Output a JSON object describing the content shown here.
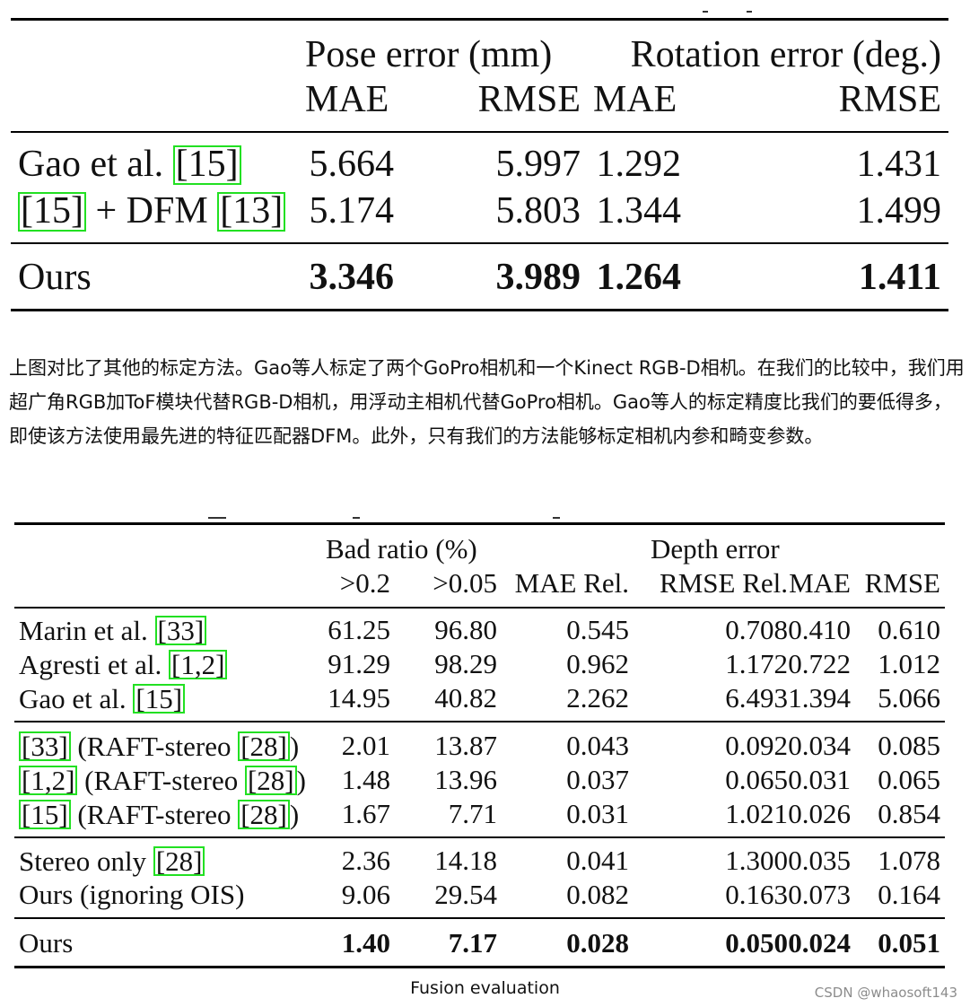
{
  "table1": {
    "header": {
      "group1": "Pose error (mm)",
      "group2": "Rotation error (deg.)",
      "col1": "MAE",
      "col2": "RMSE",
      "col3": "MAE",
      "col4": "RMSE"
    },
    "rows": [
      {
        "method_parts": [
          "Gao et al. ",
          "[15]"
        ],
        "values": [
          "5.664",
          "5.997",
          "1.292",
          "1.431"
        ],
        "bold": false
      },
      {
        "method_parts": [
          "[15]",
          " + DFM ",
          "[13]"
        ],
        "values": [
          "5.174",
          "5.803",
          "1.344",
          "1.499"
        ],
        "bold": false
      },
      {
        "method_parts": [
          "Ours"
        ],
        "values": [
          "3.346",
          "3.989",
          "1.264",
          "1.411"
        ],
        "bold": true
      }
    ]
  },
  "paragraph": "上图对比了其他的标定方法。Gao等人标定了两个GoPro相机和一个Kinect RGB-D相机。在我们的比较中，我们用超广角RGB加ToF模块代替RGB-D相机，用浮动主相机代替GoPro相机。Gao等人的标定精度比我们的要低得多，即使该方法使用最先进的特征匹配器DFM。此外，只有我们的方法能够标定相机内参和畸变参数。",
  "table2": {
    "header": {
      "group1": "Bad ratio (%)",
      "group2": "Depth error",
      "col1": ">0.2",
      "col2": ">0.05",
      "col3": "MAE Rel.",
      "col4": "RMSE Rel.",
      "col5": "MAE",
      "col6": "RMSE"
    },
    "rows": [
      {
        "method_parts": [
          "Marin et al. ",
          "[33]"
        ],
        "values": [
          "61.25",
          "96.80",
          "0.545",
          "0.708",
          "0.410",
          "0.610"
        ],
        "bold": false
      },
      {
        "method_parts": [
          "Agresti et al. ",
          "[1,2]"
        ],
        "values": [
          "91.29",
          "98.29",
          "0.962",
          "1.172",
          "0.722",
          "1.012"
        ],
        "bold": false
      },
      {
        "method_parts": [
          "Gao et al. ",
          "[15]"
        ],
        "values": [
          "14.95",
          "40.82",
          "2.262",
          "6.493",
          "1.394",
          "5.066"
        ],
        "bold": false
      },
      {
        "method_parts": [
          "[33]",
          " (RAFT-stereo ",
          "[28]",
          ")"
        ],
        "values": [
          "2.01",
          "13.87",
          "0.043",
          "0.092",
          "0.034",
          "0.085"
        ],
        "bold": false
      },
      {
        "method_parts": [
          "[1,2]",
          " (RAFT-stereo ",
          "[28]",
          ")"
        ],
        "values": [
          "1.48",
          "13.96",
          "0.037",
          "0.065",
          "0.031",
          "0.065"
        ],
        "bold": false
      },
      {
        "method_parts": [
          "[15]",
          " (RAFT-stereo ",
          "[28]",
          ")"
        ],
        "values": [
          "1.67",
          "7.71",
          "0.031",
          "1.021",
          "0.026",
          "0.854"
        ],
        "bold": false
      },
      {
        "method_parts": [
          "Stereo only ",
          "[28]"
        ],
        "values": [
          "2.36",
          "14.18",
          "0.041",
          "1.300",
          "0.035",
          "1.078"
        ],
        "bold": false
      },
      {
        "method_parts": [
          "Ours (ignoring OIS)"
        ],
        "values": [
          "9.06",
          "29.54",
          "0.082",
          "0.163",
          "0.073",
          "0.164"
        ],
        "bold": false
      },
      {
        "method_parts": [
          "Ours"
        ],
        "values": [
          "1.40",
          "7.17",
          "0.028",
          "0.050",
          "0.024",
          "0.051"
        ],
        "bold": true
      }
    ]
  },
  "caption": "Fusion evaluation",
  "watermark": "CSDN @whaosoft143"
}
